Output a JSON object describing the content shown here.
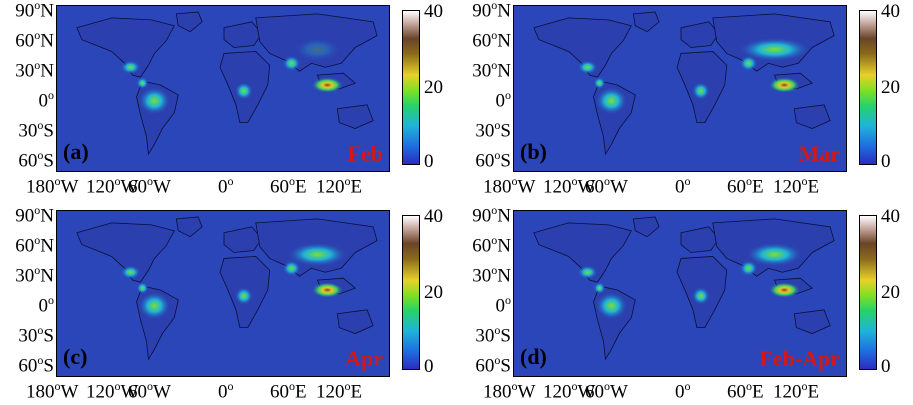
{
  "panels": [
    {
      "letter": "(a)",
      "month": "Feb"
    },
    {
      "letter": "(b)",
      "month": "Mar"
    },
    {
      "letter": "(c)",
      "month": "Apr"
    },
    {
      "letter": "(d)",
      "month": "Feb-Apr"
    }
  ],
  "lat_labels": [
    {
      "val": "90",
      "hemi": "N"
    },
    {
      "val": "60",
      "hemi": "N"
    },
    {
      "val": "30",
      "hemi": "N"
    },
    {
      "val": "0",
      "hemi": ""
    },
    {
      "val": "30",
      "hemi": "S"
    },
    {
      "val": "60",
      "hemi": "S"
    }
  ],
  "lon_labels": [
    {
      "val": "180",
      "hemi": "W"
    },
    {
      "val": "120",
      "hemi": "W"
    },
    {
      "val": "60",
      "hemi": "W"
    },
    {
      "val": "0",
      "hemi": ""
    },
    {
      "val": "60",
      "hemi": "E"
    },
    {
      "val": "120",
      "hemi": "E"
    }
  ],
  "degree_symbol": "o",
  "colorbar": {
    "ticks": [
      "40",
      "20",
      "0"
    ],
    "min": 0,
    "max": 40
  },
  "colors": {
    "ocean": "#2a46b8",
    "land": "#2b3fae",
    "month_label": "#d01818"
  }
}
